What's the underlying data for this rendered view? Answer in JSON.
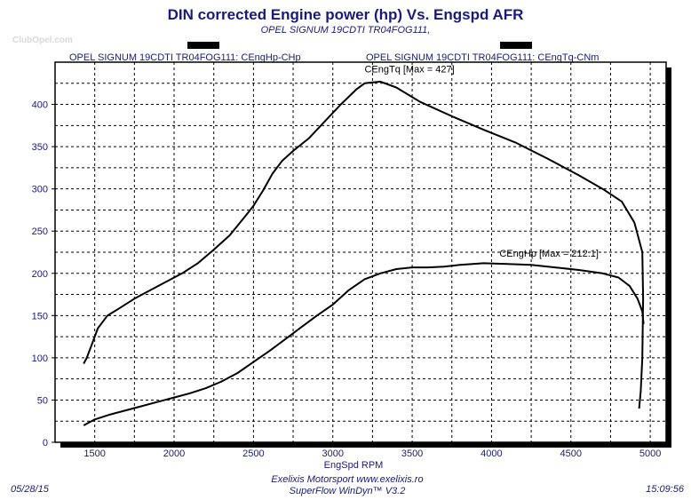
{
  "header": {
    "title": "DIN corrected Engine power (hp) Vs. Engspd AFR",
    "subtitle": "OPEL SIGNUM 19CDTI TR04FOG111,"
  },
  "legend": {
    "left": "OPEL SIGNUM 19CDTI TR04FOG111: CEngHp-CHp",
    "right": "OPEL SIGNUM 19CDTI TR04FOG111: CEngTq-CNm"
  },
  "logo": {
    "text": "ClubOpel.com"
  },
  "footer": {
    "date": "05/28/15",
    "time": "15:09:56",
    "line1": "Exelixis Motorsport www.exelixis.ro",
    "line2": "SuperFlow WinDyn™ V3.2"
  },
  "colors": {
    "text": "#1a1a7a",
    "curve": "#000000",
    "grid": "#000000",
    "logo": "#d9d9d9"
  },
  "chart_data": {
    "type": "line",
    "xlabel": "EngSpd RPM",
    "xlim": [
      1250,
      5100
    ],
    "ylim": [
      0,
      450
    ],
    "xticks": [
      1500,
      2000,
      2500,
      3000,
      3500,
      4000,
      4500,
      5000
    ],
    "yticks": [
      0,
      50,
      100,
      150,
      200,
      250,
      300,
      350,
      400
    ],
    "grid": true,
    "legend_placement": "top",
    "series": [
      {
        "name": "CEngTq",
        "annotation": "CEngTq [Max = 427]",
        "points": [
          [
            1430,
            93
          ],
          [
            1450,
            100
          ],
          [
            1480,
            115
          ],
          [
            1520,
            135
          ],
          [
            1580,
            150
          ],
          [
            1650,
            158
          ],
          [
            1750,
            170
          ],
          [
            1850,
            180
          ],
          [
            1950,
            190
          ],
          [
            2050,
            200
          ],
          [
            2150,
            212
          ],
          [
            2250,
            228
          ],
          [
            2350,
            245
          ],
          [
            2450,
            268
          ],
          [
            2500,
            280
          ],
          [
            2560,
            298
          ],
          [
            2620,
            318
          ],
          [
            2680,
            333
          ],
          [
            2750,
            345
          ],
          [
            2850,
            360
          ],
          [
            2950,
            380
          ],
          [
            3050,
            400
          ],
          [
            3150,
            418
          ],
          [
            3200,
            425
          ],
          [
            3300,
            427
          ],
          [
            3400,
            420
          ],
          [
            3550,
            403
          ],
          [
            3750,
            386
          ],
          [
            3950,
            370
          ],
          [
            4150,
            355
          ],
          [
            4350,
            336
          ],
          [
            4550,
            316
          ],
          [
            4700,
            300
          ],
          [
            4820,
            285
          ],
          [
            4900,
            260
          ],
          [
            4950,
            225
          ],
          [
            4955,
            170
          ],
          [
            4950,
            100
          ],
          [
            4940,
            60
          ],
          [
            4930,
            40
          ]
        ]
      },
      {
        "name": "CEngHp",
        "annotation": "CEngHp [Max = 212.1]",
        "points": [
          [
            1430,
            20
          ],
          [
            1500,
            27
          ],
          [
            1600,
            33
          ],
          [
            1700,
            38
          ],
          [
            1800,
            43
          ],
          [
            1900,
            48
          ],
          [
            2000,
            53
          ],
          [
            2100,
            58
          ],
          [
            2200,
            64
          ],
          [
            2300,
            72
          ],
          [
            2400,
            82
          ],
          [
            2500,
            95
          ],
          [
            2600,
            108
          ],
          [
            2700,
            122
          ],
          [
            2800,
            136
          ],
          [
            2900,
            150
          ],
          [
            3000,
            163
          ],
          [
            3100,
            180
          ],
          [
            3200,
            193
          ],
          [
            3300,
            200
          ],
          [
            3400,
            205
          ],
          [
            3500,
            207
          ],
          [
            3600,
            207
          ],
          [
            3700,
            208
          ],
          [
            3800,
            210
          ],
          [
            3950,
            212
          ],
          [
            4100,
            211
          ],
          [
            4250,
            210
          ],
          [
            4400,
            207
          ],
          [
            4550,
            204
          ],
          [
            4700,
            200
          ],
          [
            4800,
            195
          ],
          [
            4870,
            185
          ],
          [
            4920,
            170
          ],
          [
            4950,
            155
          ],
          [
            4958,
            140
          ]
        ]
      }
    ]
  }
}
